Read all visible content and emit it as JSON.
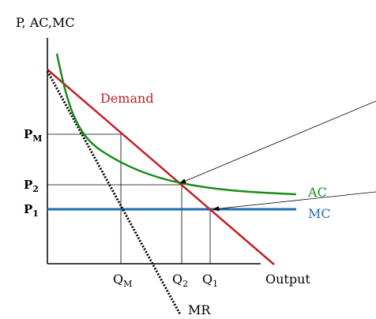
{
  "axes": {
    "y_title": "P, AC,MC",
    "x_title": "Output"
  },
  "curves": {
    "demand": "Demand",
    "ac": "AC",
    "mc": "MC",
    "mr": "MR"
  },
  "price_labels": [
    {
      "main": "P",
      "sub": "M"
    },
    {
      "main": "P",
      "sub": "2"
    },
    {
      "main": "P",
      "sub": "1"
    }
  ],
  "quantity_labels": [
    {
      "main": "Q",
      "sub": "M"
    },
    {
      "main": "Q",
      "sub": "2"
    },
    {
      "main": "Q",
      "sub": "1"
    }
  ]
}
